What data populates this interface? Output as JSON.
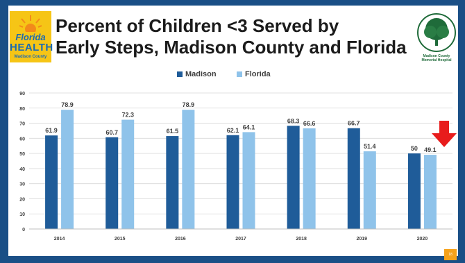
{
  "header": {
    "title_line1": "Percent of Children <3 Served by",
    "title_line2": "Early Steps, Madison County and Florida"
  },
  "logos": {
    "left_line1": "Florida",
    "left_line2": "HEALTH",
    "left_line3": "Madison County",
    "right_line1": "Madison County",
    "right_line2": "Memorial Hospital"
  },
  "slide_number": "18",
  "colors": {
    "madison": "#1f5c99",
    "florida": "#8fc3ea",
    "arrow": "#e81c1c"
  },
  "chart_data": {
    "type": "bar",
    "categories": [
      "2014",
      "2015",
      "2016",
      "2017",
      "2018",
      "2019",
      "2020"
    ],
    "series": [
      {
        "name": "Madison",
        "values": [
          61.9,
          60.7,
          61.5,
          62.1,
          68.3,
          66.7,
          50
        ]
      },
      {
        "name": "Florida",
        "values": [
          78.9,
          72.3,
          78.9,
          64.1,
          66.6,
          51.4,
          49.1
        ]
      }
    ],
    "value_labels": {
      "Madison": [
        "61.9",
        "60.7",
        "61.5",
        "62.1",
        "68.3",
        "66.7",
        "50"
      ],
      "Florida": [
        "78.9",
        "72.3",
        "78.9",
        "64.1",
        "66.6",
        "51.4",
        "49.1"
      ]
    },
    "title": "",
    "xlabel": "",
    "ylabel": "",
    "ylim": [
      0,
      90
    ],
    "yticks": [
      0,
      10,
      20,
      30,
      40,
      50,
      60,
      70,
      80,
      90
    ],
    "grid": true,
    "legend": "top-center"
  }
}
